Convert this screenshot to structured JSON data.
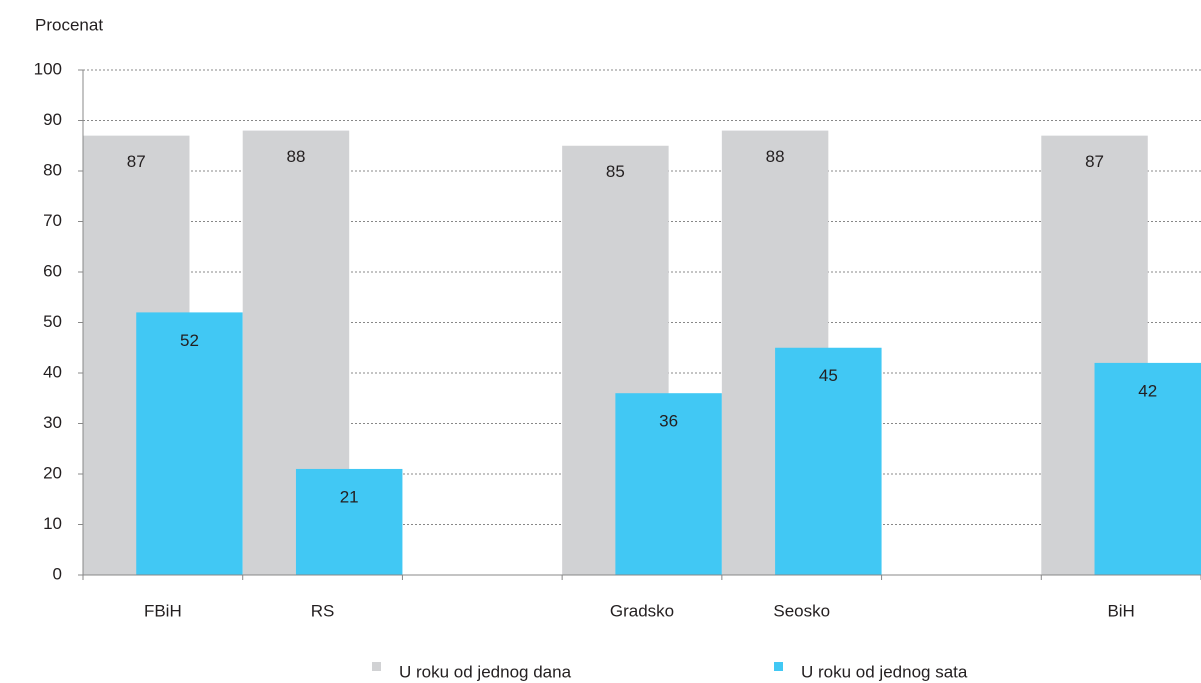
{
  "chart_data": {
    "type": "bar",
    "y_label": "Procenat",
    "categories": [
      "FBiH",
      "RS",
      null,
      "Gradsko",
      "Seosko",
      null,
      "BiH"
    ],
    "series": [
      {
        "name": "U roku od jednog dana",
        "color": "#d1d2d4",
        "values": [
          87,
          88,
          null,
          85,
          88,
          null,
          87
        ]
      },
      {
        "name": "U roku od jednog sata",
        "color": "#41c8f4",
        "values": [
          52,
          21,
          null,
          36,
          45,
          null,
          42
        ]
      }
    ],
    "ylim": [
      0,
      100
    ],
    "yticks": [
      0,
      10,
      20,
      30,
      40,
      50,
      60,
      70,
      80,
      90,
      100
    ],
    "grid": true,
    "legend": "bottom"
  }
}
